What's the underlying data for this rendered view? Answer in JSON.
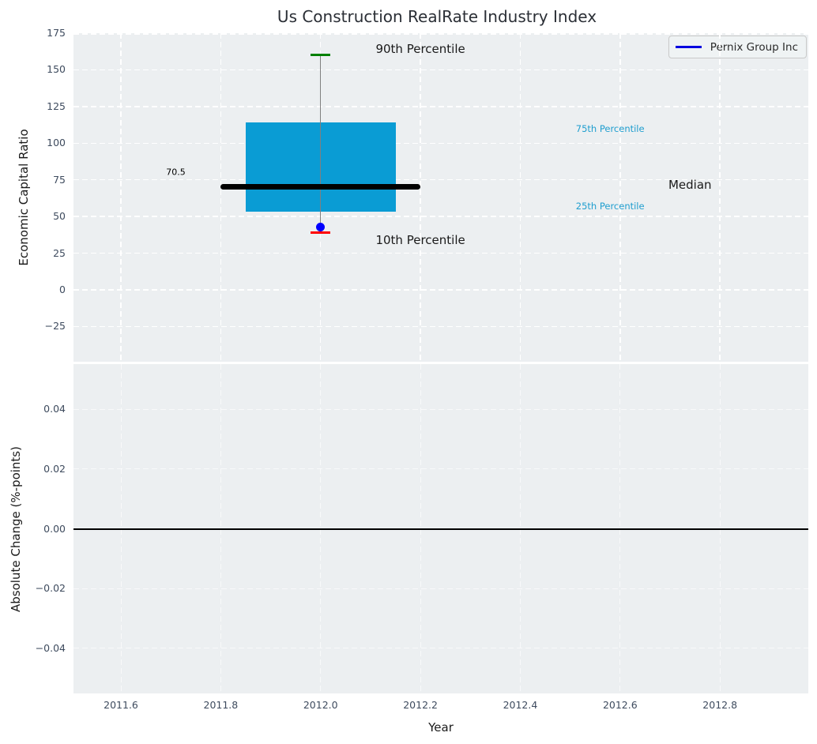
{
  "title": "Us Construction RealRate Industry Index",
  "colors": {
    "axes_background": "#eceff1",
    "grid": "#ffffff",
    "box_fill": "#0a9cd4",
    "median_line": "#000000",
    "whisker": "#808080",
    "cap_90th": "#008000",
    "cap_10th": "#ff0000",
    "company_marker": "#0000ff",
    "legend_line": "#0000e0",
    "zero_line": "#000000",
    "tick_label": "#3e4b5e",
    "percentile_label": "#1f9ecf"
  },
  "legend": {
    "label": "Pernix Group Inc"
  },
  "chart_data": [
    {
      "type": "boxplot",
      "title": "Us Construction RealRate Industry Index",
      "ylabel": "Economic Capital Ratio",
      "yticks": [
        175,
        150,
        125,
        100,
        75,
        50,
        25,
        0,
        -25
      ],
      "ytick_labels": [
        "175",
        "150",
        "125",
        "100",
        "75",
        "50",
        "25",
        "0",
        "−25"
      ],
      "ylim": [
        -49,
        175
      ],
      "xlim": [
        2011.505,
        2012.977
      ],
      "grid": true,
      "legend": {
        "label": "Pernix Group Inc",
        "position": "upper right"
      },
      "box": {
        "x_center": 2012.0,
        "box_half_width": 0.15,
        "median_half_width": 0.2,
        "cap_half_width": 0.02,
        "p10": 39,
        "p25": 53.5,
        "median": 70.5,
        "p75": 114,
        "p90": 160
      },
      "company_point": {
        "name": "Pernix Group Inc",
        "x": 2012.0,
        "y": 43
      },
      "annotations": [
        {
          "text": "90th Percentile",
          "x": 2012.2,
          "y": 164.5,
          "style": "big"
        },
        {
          "text": "75th Percentile",
          "x": 2012.58,
          "y": 110,
          "style": "small-cyan"
        },
        {
          "text": "Median",
          "x": 2012.74,
          "y": 71.5,
          "style": "big"
        },
        {
          "text": "25th Percentile",
          "x": 2012.58,
          "y": 57,
          "style": "small-cyan"
        },
        {
          "text": "10th Percentile",
          "x": 2012.2,
          "y": 34,
          "style": "big"
        },
        {
          "text": "70.5",
          "x": 2011.71,
          "y": 80,
          "style": "tiny-black"
        }
      ]
    },
    {
      "type": "line",
      "ylabel": "Absolute Change (%-points)",
      "xlabel": "Year",
      "yticks": [
        0.04,
        0.02,
        0.0,
        -0.02,
        -0.04
      ],
      "ytick_labels": [
        "0.04",
        "0.02",
        "0.00",
        "−0.02",
        "−0.04"
      ],
      "ylim": [
        -0.0552,
        0.0552
      ],
      "xticks": [
        2011.6,
        2011.8,
        2012.0,
        2012.2,
        2012.4,
        2012.6,
        2012.8
      ],
      "xtick_labels": [
        "2011.6",
        "2011.8",
        "2012.0",
        "2012.2",
        "2012.4",
        "2012.6",
        "2012.8"
      ],
      "xlim": [
        2011.505,
        2012.977
      ],
      "zero_line": 0.0,
      "grid": true
    }
  ]
}
